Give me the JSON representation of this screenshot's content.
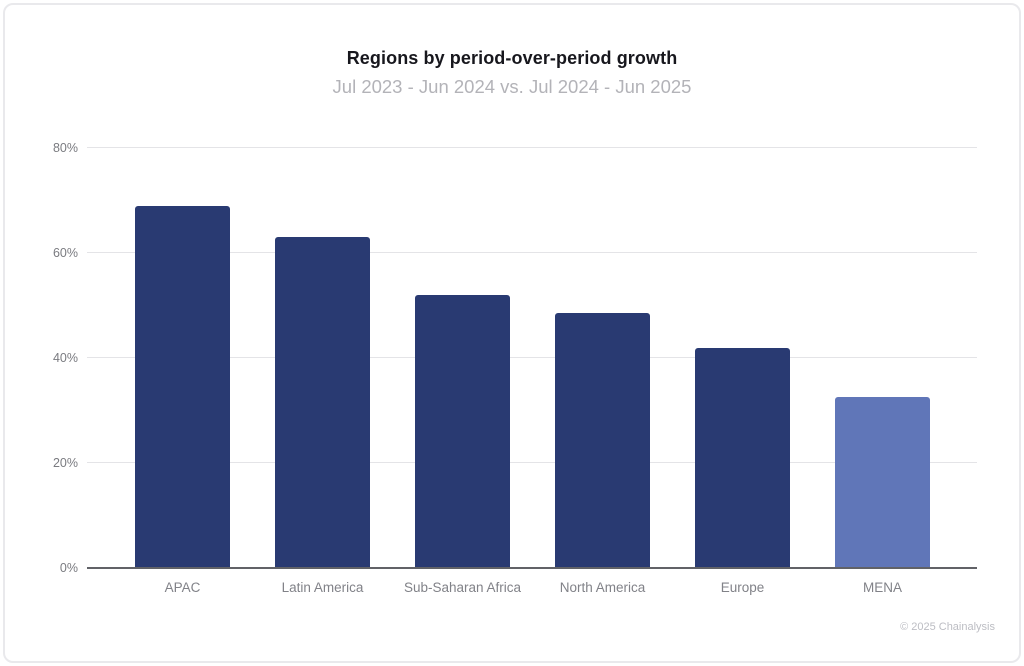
{
  "page": {
    "background_color": "#ffffff",
    "card_border_color": "#e9e9ec"
  },
  "header": {
    "title": "Regions by period-over-period growth",
    "subtitle": "Jul 2023 - Jun 2024 vs. Jul 2024 - Jun 2025"
  },
  "footer": {
    "copyright": "© 2025 Chainalysis"
  },
  "chart_data": {
    "type": "bar",
    "title": "Regions by period-over-period growth",
    "subtitle": "Jul 2023 - Jun 2024 vs. Jul 2024 - Jun 2025",
    "categories": [
      "APAC",
      "Latin America",
      "Sub-Saharan Africa",
      "North America",
      "Europe",
      "MENA"
    ],
    "values": [
      69,
      63,
      52,
      48.5,
      42,
      32.5
    ],
    "unit": "%",
    "ylim": [
      0,
      80
    ],
    "ytick_values": [
      0,
      20,
      40,
      60,
      80
    ],
    "ytick_labels": [
      "0%",
      "20%",
      "40%",
      "60%",
      "80%"
    ],
    "grid": true,
    "legend": null,
    "xlabel": "",
    "ylabel": "",
    "bar_colors": [
      "#293a72",
      "#293a72",
      "#293a72",
      "#293a72",
      "#293a72",
      "#6076b8"
    ],
    "default_bar_color": "#293a72",
    "highlight_bar_color": "#6076b8",
    "highlighted_category": "MENA"
  }
}
